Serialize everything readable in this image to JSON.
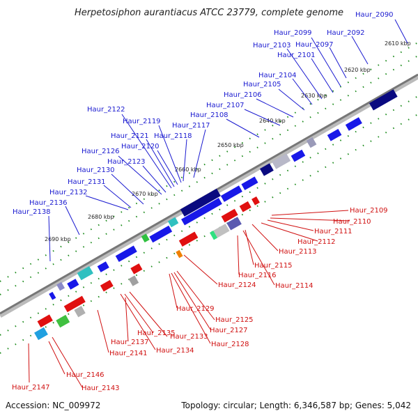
{
  "title": "Herpetosiphon aurantiacus ATCC 23779, complete genome",
  "accession": "Accession: NC_009972",
  "summary": "Topology: circular; Length: 6,346,587 bp; Genes: 5,042",
  "colors": {
    "forward": "#1010e0",
    "reverse": "#e01010",
    "backbone": "#888888",
    "tick": "#1a8a1a",
    "label_top": "#1a1ad0",
    "label_bottom": "#d01010"
  },
  "scale": [
    {
      "label": "2610 kbp",
      "kbp": 2610
    },
    {
      "label": "2620 kbp",
      "kbp": 2620
    },
    {
      "label": "2630 kbp",
      "kbp": 2630
    },
    {
      "label": "2640 kbp",
      "kbp": 2640
    },
    {
      "label": "2650 kbp",
      "kbp": 2650
    },
    {
      "label": "2660 kbp",
      "kbp": 2660
    },
    {
      "label": "2670 kbp",
      "kbp": 2670
    },
    {
      "label": "2680 kbp",
      "kbp": 2680
    },
    {
      "label": "2690 kbp",
      "kbp": 2690
    }
  ],
  "forward_genes": [
    "Haur_2090",
    "Haur_2092",
    "Haur_2097",
    "Haur_2099",
    "Haur_2101",
    "Haur_2103",
    "Haur_2104",
    "Haur_2105",
    "Haur_2106",
    "Haur_2107",
    "Haur_2108",
    "Haur_2117",
    "Haur_2118",
    "Haur_2119",
    "Haur_2120",
    "Haur_2121",
    "Haur_2122",
    "Haur_2123",
    "Haur_2126",
    "Haur_2130",
    "Haur_2131",
    "Haur_2132",
    "Haur_2136",
    "Haur_2138"
  ],
  "reverse_genes": [
    "Haur_2109",
    "Haur_2110",
    "Haur_2111",
    "Haur_2112",
    "Haur_2113",
    "Haur_2115",
    "Haur_2116",
    "Haur_2114",
    "Haur_2124",
    "Haur_2129",
    "Haur_2125",
    "Haur_2127",
    "Haur_2128",
    "Haur_2135",
    "Haur_2133",
    "Haur_2137",
    "Haur_2134",
    "Haur_2141",
    "Haur_2146",
    "Haur_2147",
    "Haur_2143"
  ]
}
